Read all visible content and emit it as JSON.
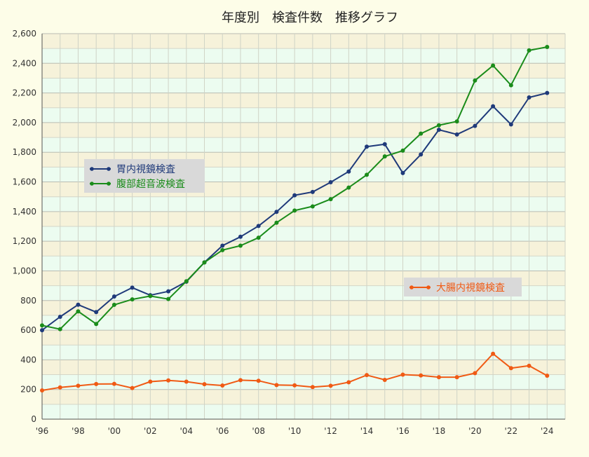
{
  "chart_data": {
    "type": "line",
    "title": "年度別　検査件数　推移グラフ",
    "x": [
      1996,
      1997,
      1998,
      1999,
      2000,
      2001,
      2002,
      2003,
      2004,
      2005,
      2006,
      2007,
      2008,
      2009,
      2010,
      2011,
      2012,
      2013,
      2014,
      2015,
      2016,
      2017,
      2018,
      2019,
      2020,
      2021,
      2022,
      2023,
      2024
    ],
    "x_tick_labels": [
      "'96",
      "'98",
      "'00",
      "'02",
      "'04",
      "'06",
      "'08",
      "'10",
      "'12",
      "'14",
      "'16",
      "'18",
      "'20",
      "'22",
      "'24"
    ],
    "x_tick_values": [
      1996,
      1998,
      2000,
      2002,
      2004,
      2006,
      2008,
      2010,
      2012,
      2014,
      2016,
      2018,
      2020,
      2022,
      2024
    ],
    "y_tick_labels": [
      "0",
      "200",
      "400",
      "600",
      "800",
      "1,000",
      "1,200",
      "1,400",
      "1,600",
      "1,800",
      "2,000",
      "2,200",
      "2,400",
      "2,600"
    ],
    "ylim": [
      0,
      2600
    ],
    "xlim": [
      1996,
      2025
    ],
    "grid": true,
    "series": [
      {
        "name": "胃内視鏡検査",
        "color": "#1f3a7a",
        "values": [
          600,
          690,
          772,
          722,
          827,
          887,
          836,
          862,
          927,
          1057,
          1170,
          1230,
          1303,
          1398,
          1510,
          1532,
          1598,
          1670,
          1838,
          1854,
          1660,
          1785,
          1952,
          1920,
          1978,
          2110,
          1988,
          2170,
          2200
        ]
      },
      {
        "name": "腹部超音波検査",
        "color": "#1a8c1a",
        "values": [
          632,
          607,
          727,
          642,
          771,
          808,
          830,
          810,
          930,
          1057,
          1140,
          1170,
          1224,
          1325,
          1407,
          1435,
          1484,
          1562,
          1648,
          1772,
          1811,
          1926,
          1982,
          2008,
          2284,
          2385,
          2252,
          2487,
          2510
        ]
      },
      {
        "name": "大腸内視鏡検査",
        "color": "#f05a14",
        "values": [
          194,
          214,
          225,
          237,
          238,
          210,
          253,
          261,
          253,
          236,
          227,
          263,
          259,
          230,
          228,
          216,
          225,
          249,
          297,
          265,
          300,
          295,
          283,
          283,
          310,
          441,
          344,
          360,
          293
        ]
      }
    ],
    "legend": [
      {
        "placement": "left-middle",
        "entries": [
          "胃内視鏡検査",
          "腹部超音波検査"
        ]
      },
      {
        "placement": "right-lower",
        "entries": [
          "大腸内視鏡検査"
        ]
      }
    ]
  }
}
